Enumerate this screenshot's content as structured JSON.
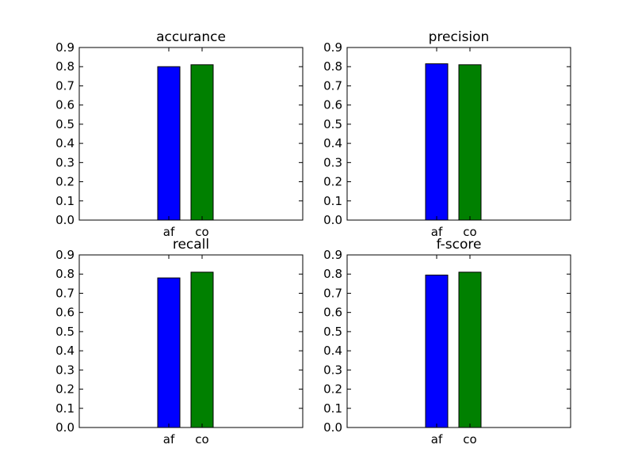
{
  "colors": {
    "af": "#0000ff",
    "co": "#008000",
    "axis": "#000000",
    "background": "#ffffff"
  },
  "chart_data": [
    {
      "type": "bar",
      "title": "accurance",
      "categories": [
        "af",
        "co"
      ],
      "values": [
        0.8,
        0.81
      ],
      "ylim": [
        0,
        0.9
      ],
      "yticks": [
        "0.0",
        "0.1",
        "0.2",
        "0.3",
        "0.4",
        "0.5",
        "0.6",
        "0.7",
        "0.8",
        "0.9"
      ],
      "grid": false
    },
    {
      "type": "bar",
      "title": "precision",
      "categories": [
        "af",
        "co"
      ],
      "values": [
        0.815,
        0.81
      ],
      "ylim": [
        0,
        0.9
      ],
      "yticks": [
        "0.0",
        "0.1",
        "0.2",
        "0.3",
        "0.4",
        "0.5",
        "0.6",
        "0.7",
        "0.8",
        "0.9"
      ],
      "grid": false
    },
    {
      "type": "bar",
      "title": "recall",
      "categories": [
        "af",
        "co"
      ],
      "values": [
        0.78,
        0.81
      ],
      "ylim": [
        0,
        0.9
      ],
      "yticks": [
        "0.0",
        "0.1",
        "0.2",
        "0.3",
        "0.4",
        "0.5",
        "0.6",
        "0.7",
        "0.8",
        "0.9"
      ],
      "grid": false
    },
    {
      "type": "bar",
      "title": "f-score",
      "categories": [
        "af",
        "co"
      ],
      "values": [
        0.795,
        0.81
      ],
      "ylim": [
        0,
        0.9
      ],
      "yticks": [
        "0.0",
        "0.1",
        "0.2",
        "0.3",
        "0.4",
        "0.5",
        "0.6",
        "0.7",
        "0.8",
        "0.9"
      ],
      "grid": false
    }
  ]
}
